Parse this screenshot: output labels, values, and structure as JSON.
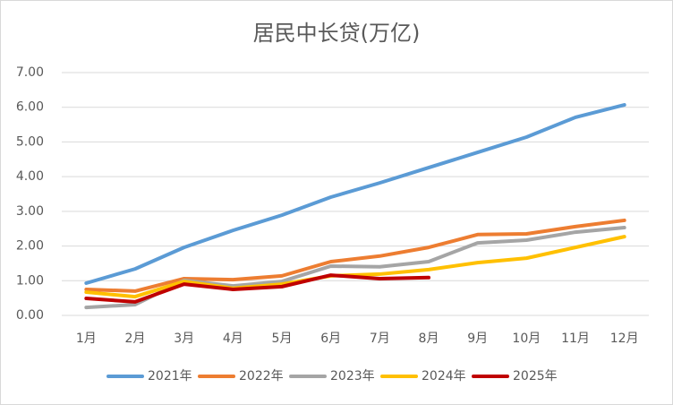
{
  "chart_data": {
    "type": "line",
    "title": "居民中长贷(万亿)",
    "categories": [
      "1月",
      "2月",
      "3月",
      "4月",
      "5月",
      "6月",
      "7月",
      "8月",
      "9月",
      "10月",
      "11月",
      "12月"
    ],
    "series": [
      {
        "name": "2021年",
        "color": "#5b9bd5",
        "values": [
          0.93,
          1.34,
          1.96,
          2.45,
          2.89,
          3.41,
          3.82,
          4.26,
          4.7,
          5.14,
          5.71,
          6.07
        ]
      },
      {
        "name": "2022年",
        "color": "#ed7d31",
        "values": [
          0.75,
          0.7,
          1.06,
          1.03,
          1.14,
          1.55,
          1.71,
          1.96,
          2.33,
          2.35,
          2.56,
          2.74
        ]
      },
      {
        "name": "2023年",
        "color": "#a5a5a5",
        "values": [
          0.23,
          0.31,
          1.01,
          0.85,
          0.98,
          1.42,
          1.4,
          1.55,
          2.09,
          2.17,
          2.4,
          2.53
        ]
      },
      {
        "name": "2024年",
        "color": "#ffc000",
        "values": [
          0.67,
          0.54,
          0.98,
          0.78,
          0.9,
          1.14,
          1.19,
          1.32,
          1.52,
          1.65,
          1.96,
          2.27
        ]
      },
      {
        "name": "2025年",
        "color": "#c00000",
        "values": [
          0.49,
          0.39,
          0.9,
          0.75,
          0.83,
          1.16,
          1.06,
          1.09,
          null,
          null,
          null,
          null
        ]
      }
    ],
    "ylim": [
      0,
      7
    ],
    "yticks": [
      {
        "value": 0,
        "label": "0.00"
      },
      {
        "value": 1,
        "label": "1.00"
      },
      {
        "value": 2,
        "label": "2.00"
      },
      {
        "value": 3,
        "label": "3.00"
      },
      {
        "value": 4,
        "label": "4.00"
      },
      {
        "value": 5,
        "label": "5.00"
      },
      {
        "value": 6,
        "label": "6.00"
      },
      {
        "value": 7,
        "label": "7.00"
      }
    ],
    "grid": true,
    "legend": "bottom"
  }
}
